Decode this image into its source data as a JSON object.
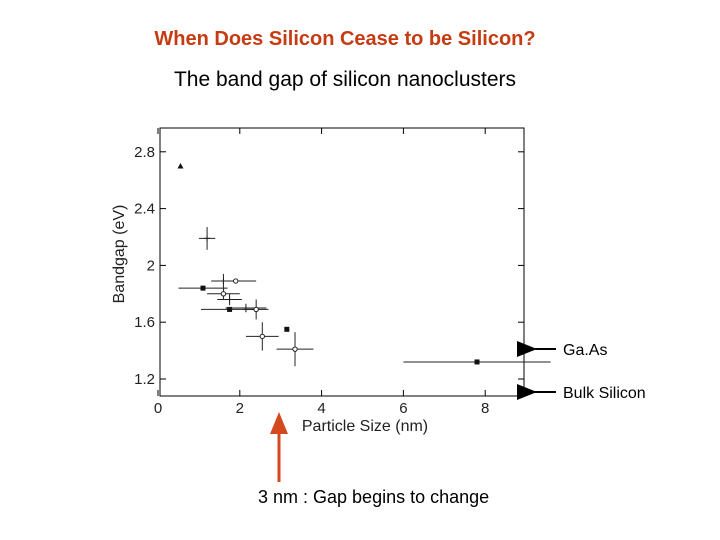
{
  "slide": {
    "title": "When Does Silicon Cease to be Silicon?",
    "subtitle": "The band gap of silicon nanoclusters",
    "annotation": "3 nm :  Gap begins to change",
    "colors": {
      "title": "#c63b12",
      "arrow": "#d24a1e",
      "frame": "#000000",
      "ink": "#222222"
    }
  },
  "chart_data": {
    "type": "scatter",
    "xlabel": "Particle Size (nm)",
    "ylabel": "Bandgap (eV)",
    "xlim": [
      0,
      9
    ],
    "ylim": [
      1.1,
      3.0
    ],
    "xticks": [
      0,
      2,
      4,
      6,
      8
    ],
    "yticks": [
      1.2,
      1.6,
      2,
      2.4,
      2.8
    ],
    "grid": false,
    "reference_lines": [
      {
        "label": "Ga.As",
        "y": 1.42
      },
      {
        "label": "Bulk Silicon",
        "y": 1.12
      }
    ],
    "points": [
      {
        "x": 0.55,
        "y": 2.7,
        "marker": "triangle",
        "xerr": 0,
        "yerr": 0
      },
      {
        "x": 1.2,
        "y": 2.19,
        "marker": "plus",
        "xerr": 0.2,
        "yerr": 0.08
      },
      {
        "x": 1.1,
        "y": 1.84,
        "marker": "square",
        "xerr": 0.6,
        "yerr": 0
      },
      {
        "x": 1.6,
        "y": 1.89,
        "marker": "plus",
        "xerr": 0.3,
        "yerr": 0.05
      },
      {
        "x": 1.9,
        "y": 1.89,
        "marker": "open",
        "xerr": 0.5,
        "yerr": 0
      },
      {
        "x": 1.6,
        "y": 1.8,
        "marker": "open",
        "xerr": 0.4,
        "yerr": 0.04
      },
      {
        "x": 1.75,
        "y": 1.76,
        "marker": "plus",
        "xerr": 0.3,
        "yerr": 0.04
      },
      {
        "x": 1.75,
        "y": 1.69,
        "marker": "square",
        "xerr": 0.7,
        "yerr": 0
      },
      {
        "x": 2.15,
        "y": 1.7,
        "marker": "plus",
        "xerr": 0.5,
        "yerr": 0.03
      },
      {
        "x": 2.4,
        "y": 1.69,
        "marker": "open",
        "xerr": 0.3,
        "yerr": 0.07
      },
      {
        "x": 2.55,
        "y": 1.5,
        "marker": "open",
        "xerr": 0.4,
        "yerr": 0.1
      },
      {
        "x": 3.15,
        "y": 1.55,
        "marker": "square",
        "xerr": 0,
        "yerr": 0
      },
      {
        "x": 3.35,
        "y": 1.41,
        "marker": "open",
        "xerr": 0.45,
        "yerr": 0.12
      },
      {
        "x": 7.8,
        "y": 1.32,
        "marker": "square",
        "xerr": 1.8,
        "yerr": 0
      }
    ]
  }
}
